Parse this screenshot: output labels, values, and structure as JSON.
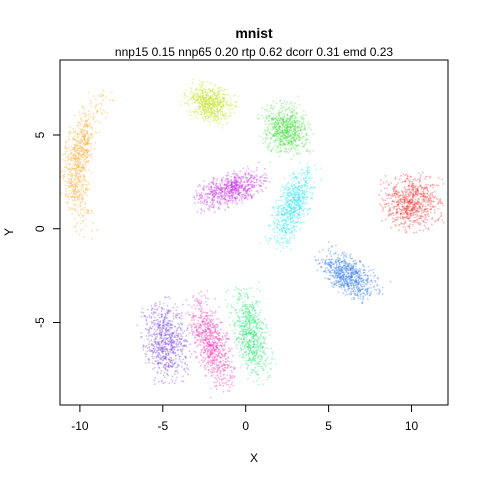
{
  "chart_data": {
    "type": "scatter",
    "title": "mnist",
    "subtitle": "nnp15 0.15 nnp65 0.20 rtp 0.62 dcorr 0.31 emd 0.23",
    "xlabel": "X",
    "ylabel": "Y",
    "xlim": [
      -11.2,
      12.2
    ],
    "ylim": [
      -9.4,
      9.0
    ],
    "xticks": [
      -10,
      -5,
      0,
      5,
      10
    ],
    "yticks": [
      -5,
      0,
      5
    ],
    "grid": false,
    "clusters": [
      {
        "center": [
          -9.1,
          3.5
        ],
        "color": "#f5a623",
        "shape": "crescent"
      },
      {
        "center": [
          -2.2,
          6.7
        ],
        "color": "#c8e632",
        "shape": "blob"
      },
      {
        "center": [
          2.4,
          5.3
        ],
        "color": "#46e03c",
        "shape": "blob"
      },
      {
        "center": [
          -0.9,
          2.1
        ],
        "color": "#c832e6",
        "shape": "fan"
      },
      {
        "center": [
          2.8,
          1.2
        ],
        "color": "#32e6f0",
        "shape": "fan"
      },
      {
        "center": [
          10.0,
          1.4
        ],
        "color": "#f03232",
        "shape": "blob"
      },
      {
        "center": [
          6.2,
          -2.5
        ],
        "color": "#3278f0",
        "shape": "fan"
      },
      {
        "center": [
          -4.8,
          -6.0
        ],
        "color": "#7846e6",
        "shape": "blob"
      },
      {
        "center": [
          -2.1,
          -6.1
        ],
        "color": "#f032b4",
        "shape": "blob"
      },
      {
        "center": [
          0.3,
          -5.6
        ],
        "color": "#32e678",
        "shape": "blob"
      }
    ]
  }
}
